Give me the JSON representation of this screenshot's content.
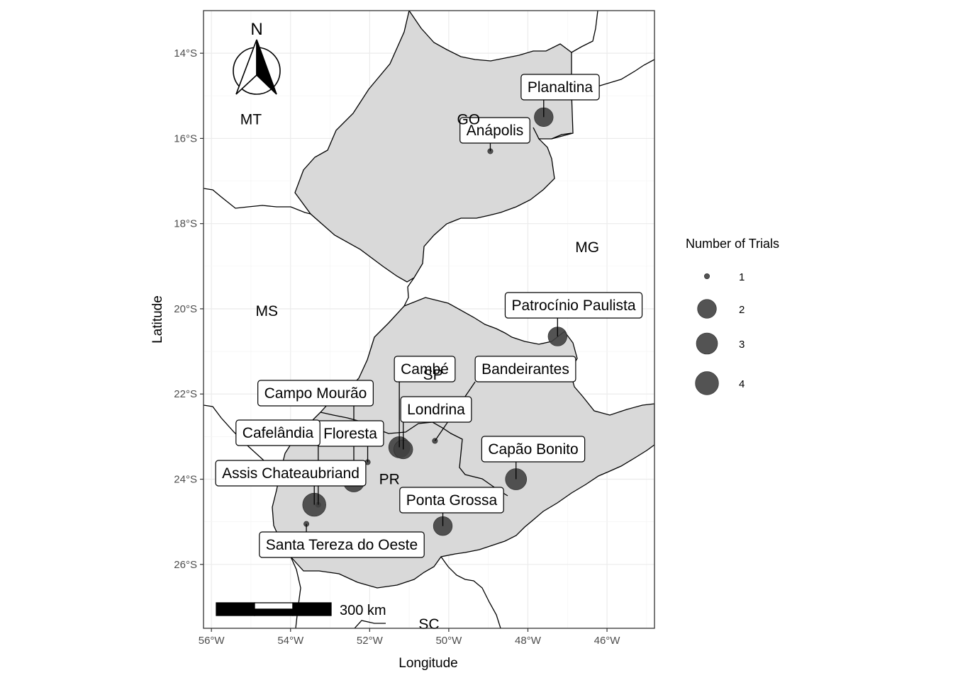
{
  "axes": {
    "xlabel": "Longitude",
    "ylabel": "Latitude",
    "xlim": [
      -56.2,
      -44.8
    ],
    "ylim": [
      -27.5,
      -13
    ],
    "x_ticks": [
      {
        "value": -56,
        "label": "56°W"
      },
      {
        "value": -54,
        "label": "54°W"
      },
      {
        "value": -52,
        "label": "52°W"
      },
      {
        "value": -50,
        "label": "50°W"
      },
      {
        "value": -48,
        "label": "48°W"
      },
      {
        "value": -46,
        "label": "46°W"
      }
    ],
    "y_ticks": [
      {
        "value": -14,
        "label": "14°S"
      },
      {
        "value": -16,
        "label": "16°S"
      },
      {
        "value": -18,
        "label": "18°S"
      },
      {
        "value": -20,
        "label": "20°S"
      },
      {
        "value": -22,
        "label": "22°S"
      },
      {
        "value": -24,
        "label": "24°S"
      },
      {
        "value": -26,
        "label": "26°S"
      }
    ],
    "grid": true
  },
  "states": [
    {
      "abbr": "MT",
      "lon": -55.0,
      "lat": -15.55
    },
    {
      "abbr": "GO",
      "lon": -49.5,
      "lat": -15.55
    },
    {
      "abbr": "MG",
      "lon": -46.5,
      "lat": -18.55
    },
    {
      "abbr": "MS",
      "lon": -54.6,
      "lat": -20.05
    },
    {
      "abbr": "SP",
      "lon": -50.4,
      "lat": -21.55
    },
    {
      "abbr": "PR",
      "lon": -51.5,
      "lat": -24.0
    },
    {
      "abbr": "SC",
      "lon": -50.5,
      "lat": -27.4
    }
  ],
  "chart_data": {
    "type": "scatter",
    "xlabel": "Longitude",
    "ylabel": "Latitude",
    "size_legend_title": "Number of Trials",
    "size_legend": [
      1,
      2,
      3,
      4
    ],
    "points": [
      {
        "name": "Planaltina",
        "lon": -47.6,
        "lat": -15.5,
        "trials": 2
      },
      {
        "name": "Anápolis",
        "lon": -48.95,
        "lat": -16.3,
        "trials": 1
      },
      {
        "name": "Patrocínio Paulista",
        "lon": -47.25,
        "lat": -20.65,
        "trials": 2
      },
      {
        "name": "Cambé",
        "lon": -51.25,
        "lat": -23.25,
        "trials": 3
      },
      {
        "name": "Londrina",
        "lon": -51.15,
        "lat": -23.3,
        "trials": 2
      },
      {
        "name": "Bandeirantes",
        "lon": -50.35,
        "lat": -23.1,
        "trials": 1
      },
      {
        "name": "Campo Mourão",
        "lon": -52.4,
        "lat": -24.05,
        "trials": 3
      },
      {
        "name": "Floresta",
        "lon": -52.05,
        "lat": -23.6,
        "trials": 1
      },
      {
        "name": "Cafelândia",
        "lon": -53.3,
        "lat": -24.6,
        "trials": 1
      },
      {
        "name": "Assis Chateaubriand",
        "lon": -53.4,
        "lat": -24.6,
        "trials": 4
      },
      {
        "name": "Santa Tereza do Oeste",
        "lon": -53.6,
        "lat": -25.05,
        "trials": 1
      },
      {
        "name": "Capão Bonito",
        "lon": -48.3,
        "lat": -24.0,
        "trials": 3
      },
      {
        "name": "Ponta Grossa",
        "lon": -50.15,
        "lat": -25.1,
        "trials": 2
      }
    ]
  },
  "scale_bar": {
    "label": "300 km"
  },
  "north_arrow": {
    "label": "N"
  },
  "colors": {
    "region_fill": "#d9d9d9",
    "point_fill": "#404040",
    "grid": "#ebebeb"
  }
}
